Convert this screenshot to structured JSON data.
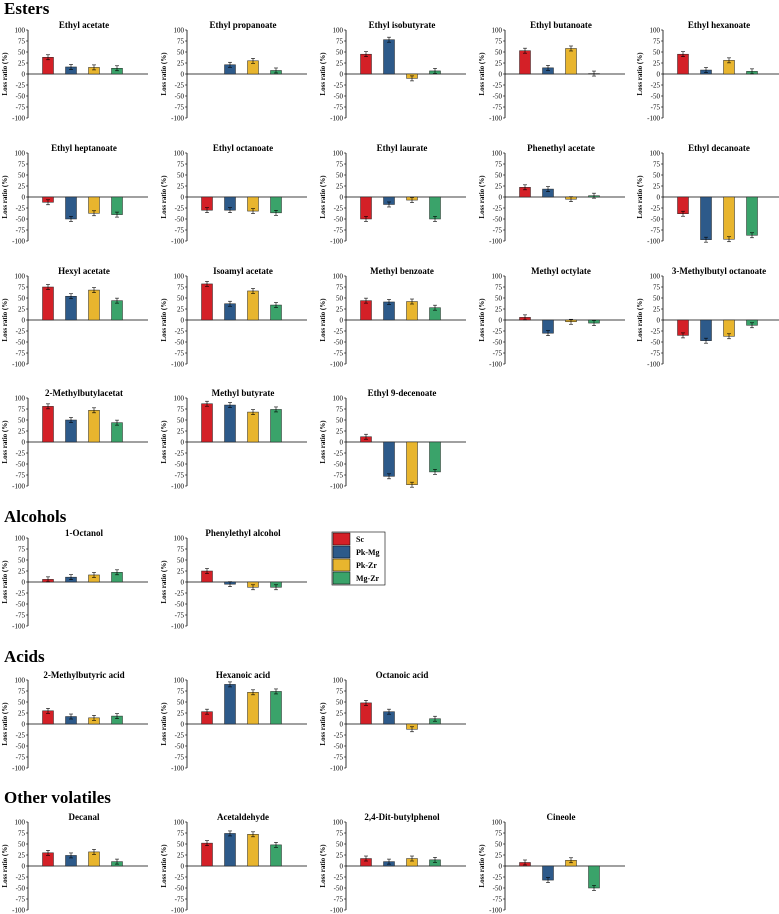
{
  "colors": {
    "Sc": "#d42027",
    "Pk-Mg": "#2d5a8a",
    "Pk-Zr": "#e8b52e",
    "Mg-Zr": "#3aa36a"
  },
  "sections": [
    "Esters",
    "Alcohols",
    "Acids",
    "Other volatiles"
  ],
  "legend": [
    "Sc",
    "Pk-Mg",
    "Pk-Zr",
    "Mg-Zr"
  ],
  "chart_data": {
    "type": "bar",
    "ylabel": "Loss ratio (%)",
    "ylim": [
      -100,
      100
    ],
    "yticks": [
      "100",
      "75",
      "50",
      "25",
      "0",
      "-25",
      "-50",
      "-75",
      "-100"
    ],
    "categories": [
      "Sc",
      "Pk-Mg",
      "Pk-Zr",
      "Mg-Zr"
    ],
    "panels": [
      {
        "section": "Esters",
        "title": "Ethyl acetate",
        "values": [
          38,
          16,
          15,
          13
        ]
      },
      {
        "section": "Esters",
        "title": "Ethyl propanoate",
        "values": [
          0,
          21,
          30,
          8
        ]
      },
      {
        "section": "Esters",
        "title": "Ethyl isobutyrate",
        "values": [
          45,
          78,
          -10,
          7
        ]
      },
      {
        "section": "Esters",
        "title": "Ethyl butanoate",
        "values": [
          53,
          14,
          58,
          1
        ]
      },
      {
        "section": "Esters",
        "title": "Ethyl hexanoate",
        "values": [
          45,
          9,
          31,
          6
        ]
      },
      {
        "section": "Esters",
        "title": "Ethyl heptanoate",
        "values": [
          -12,
          -50,
          -37,
          -40
        ]
      },
      {
        "section": "Esters",
        "title": "Ethyl octanoate",
        "values": [
          -30,
          -30,
          -32,
          -36
        ]
      },
      {
        "section": "Esters",
        "title": "Ethyl laurate",
        "values": [
          -50,
          -17,
          -7,
          -50
        ]
      },
      {
        "section": "Esters",
        "title": "Phenethyl acetate",
        "values": [
          22,
          18,
          -5,
          3
        ]
      },
      {
        "section": "Esters",
        "title": "Ethyl decanoate",
        "values": [
          -38,
          -97,
          -96,
          -87
        ]
      },
      {
        "section": "Esters",
        "title": "Hexyl acetate",
        "values": [
          75,
          54,
          68,
          44
        ]
      },
      {
        "section": "Esters",
        "title": "Isoamyl acetate",
        "values": [
          82,
          37,
          66,
          34
        ]
      },
      {
        "section": "Esters",
        "title": "Methyl benzoate",
        "values": [
          44,
          41,
          42,
          28
        ]
      },
      {
        "section": "Esters",
        "title": "Methyl octylate",
        "values": [
          6,
          -30,
          -4,
          -7
        ]
      },
      {
        "section": "Esters",
        "title": "3-Methylbutyl octanoate",
        "values": [
          -35,
          -47,
          -37,
          -12
        ]
      },
      {
        "section": "Esters",
        "title": "2-Methylbutylacetat",
        "values": [
          81,
          50,
          72,
          44
        ]
      },
      {
        "section": "Esters",
        "title": "Methyl butyrate",
        "values": [
          87,
          84,
          68,
          74
        ]
      },
      {
        "section": "Esters",
        "title": "Ethyl 9-decenoate",
        "values": [
          12,
          -78,
          -97,
          -68
        ]
      },
      {
        "section": "Alcohols",
        "title": "1-Octanol",
        "values": [
          6,
          11,
          16,
          22
        ]
      },
      {
        "section": "Alcohols",
        "title": "Phenylethyl alcohol",
        "values": [
          25,
          -5,
          -12,
          -12
        ]
      },
      {
        "section": "Acids",
        "title": "2-Methylbutyric acid",
        "values": [
          30,
          17,
          14,
          18
        ]
      },
      {
        "section": "Acids",
        "title": "Hexanoic acid",
        "values": [
          28,
          90,
          72,
          74
        ]
      },
      {
        "section": "Acids",
        "title": "Octanoic acid",
        "values": [
          48,
          28,
          -12,
          12
        ]
      },
      {
        "section": "Other volatiles",
        "title": "Decanal",
        "values": [
          30,
          24,
          32,
          10
        ]
      },
      {
        "section": "Other volatiles",
        "title": "Acetaldehyde",
        "values": [
          52,
          74,
          72,
          48
        ]
      },
      {
        "section": "Other volatiles",
        "title": "2,4-Dit-butylphenol",
        "values": [
          17,
          10,
          17,
          14
        ]
      },
      {
        "section": "Other volatiles",
        "title": "Cineole",
        "values": [
          8,
          -32,
          13,
          -50
        ]
      }
    ]
  }
}
